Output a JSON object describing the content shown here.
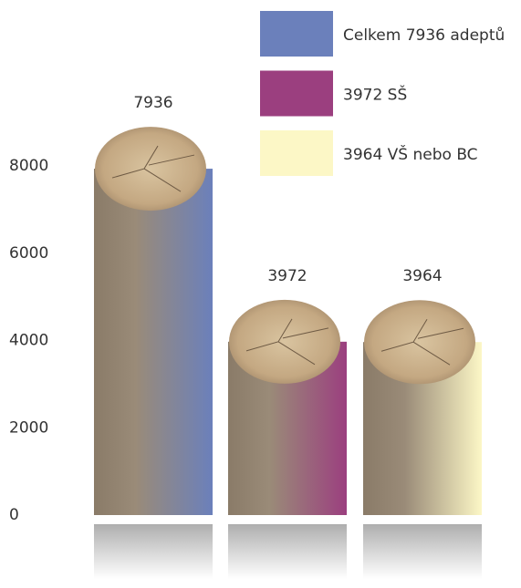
{
  "chart_data": {
    "type": "bar",
    "categories": [
      null
    ],
    "series": [
      {
        "name": "Celkem 7936 adeptů",
        "color": "#6b80bb",
        "values": [
          7936
        ]
      },
      {
        "name": "3972 SŠ",
        "color": "#9b3f7f",
        "values": [
          3972
        ]
      },
      {
        "name": "3964 VŠ nebo BC",
        "color": "#fcf7c6",
        "values": [
          3964
        ]
      }
    ],
    "ylim": [
      0,
      8000
    ],
    "yticks": [
      0,
      2000,
      4000,
      6000,
      8000
    ],
    "grid": false
  }
}
